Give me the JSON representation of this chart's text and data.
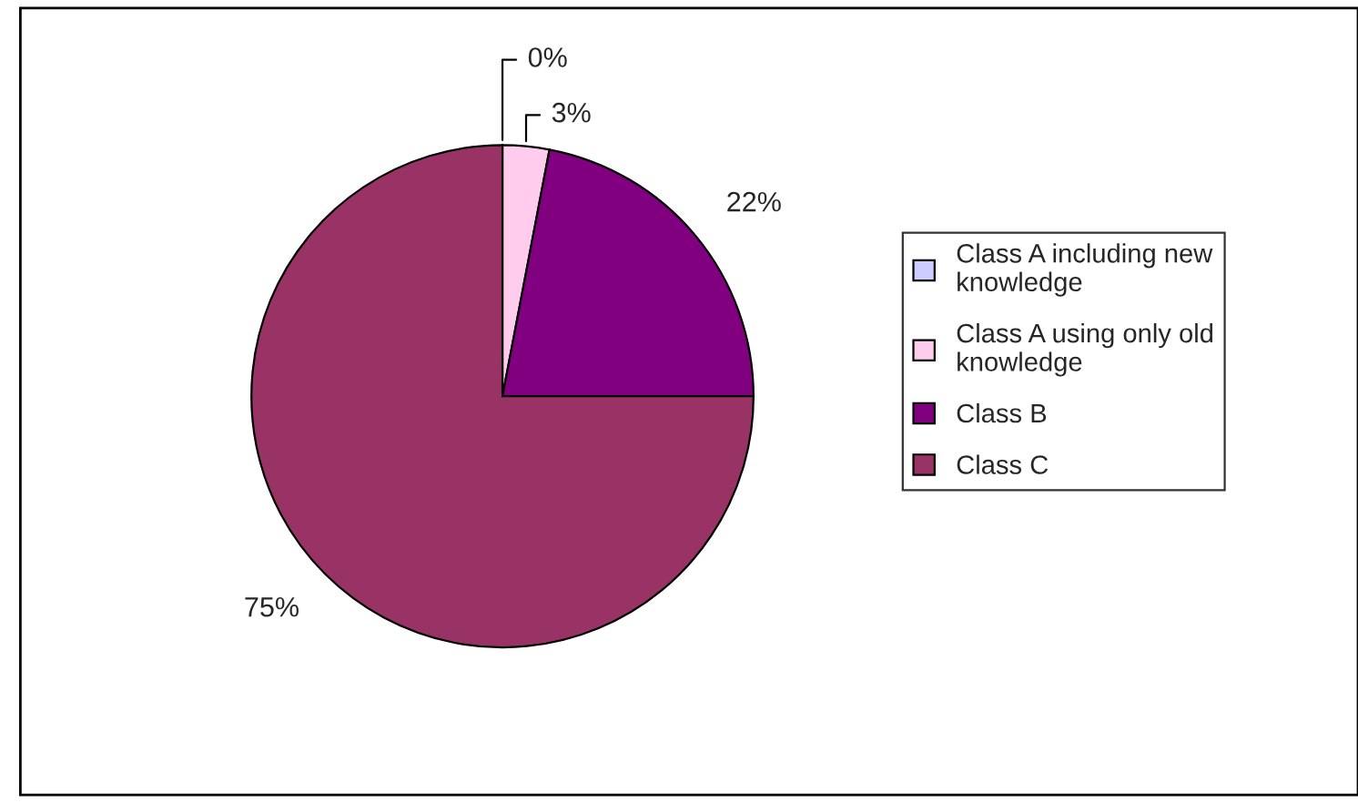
{
  "chart_data": {
    "type": "pie",
    "categories": [
      "Class A including new knowledge",
      "Class A using only old knowledge",
      "Class B",
      "Class C"
    ],
    "values": [
      0,
      3,
      22,
      75
    ],
    "value_labels": [
      "0%",
      "3%",
      "22%",
      "75%"
    ],
    "colors": [
      "#ccccff",
      "#ffccee",
      "#800080",
      "#993366"
    ],
    "legend": "right"
  }
}
